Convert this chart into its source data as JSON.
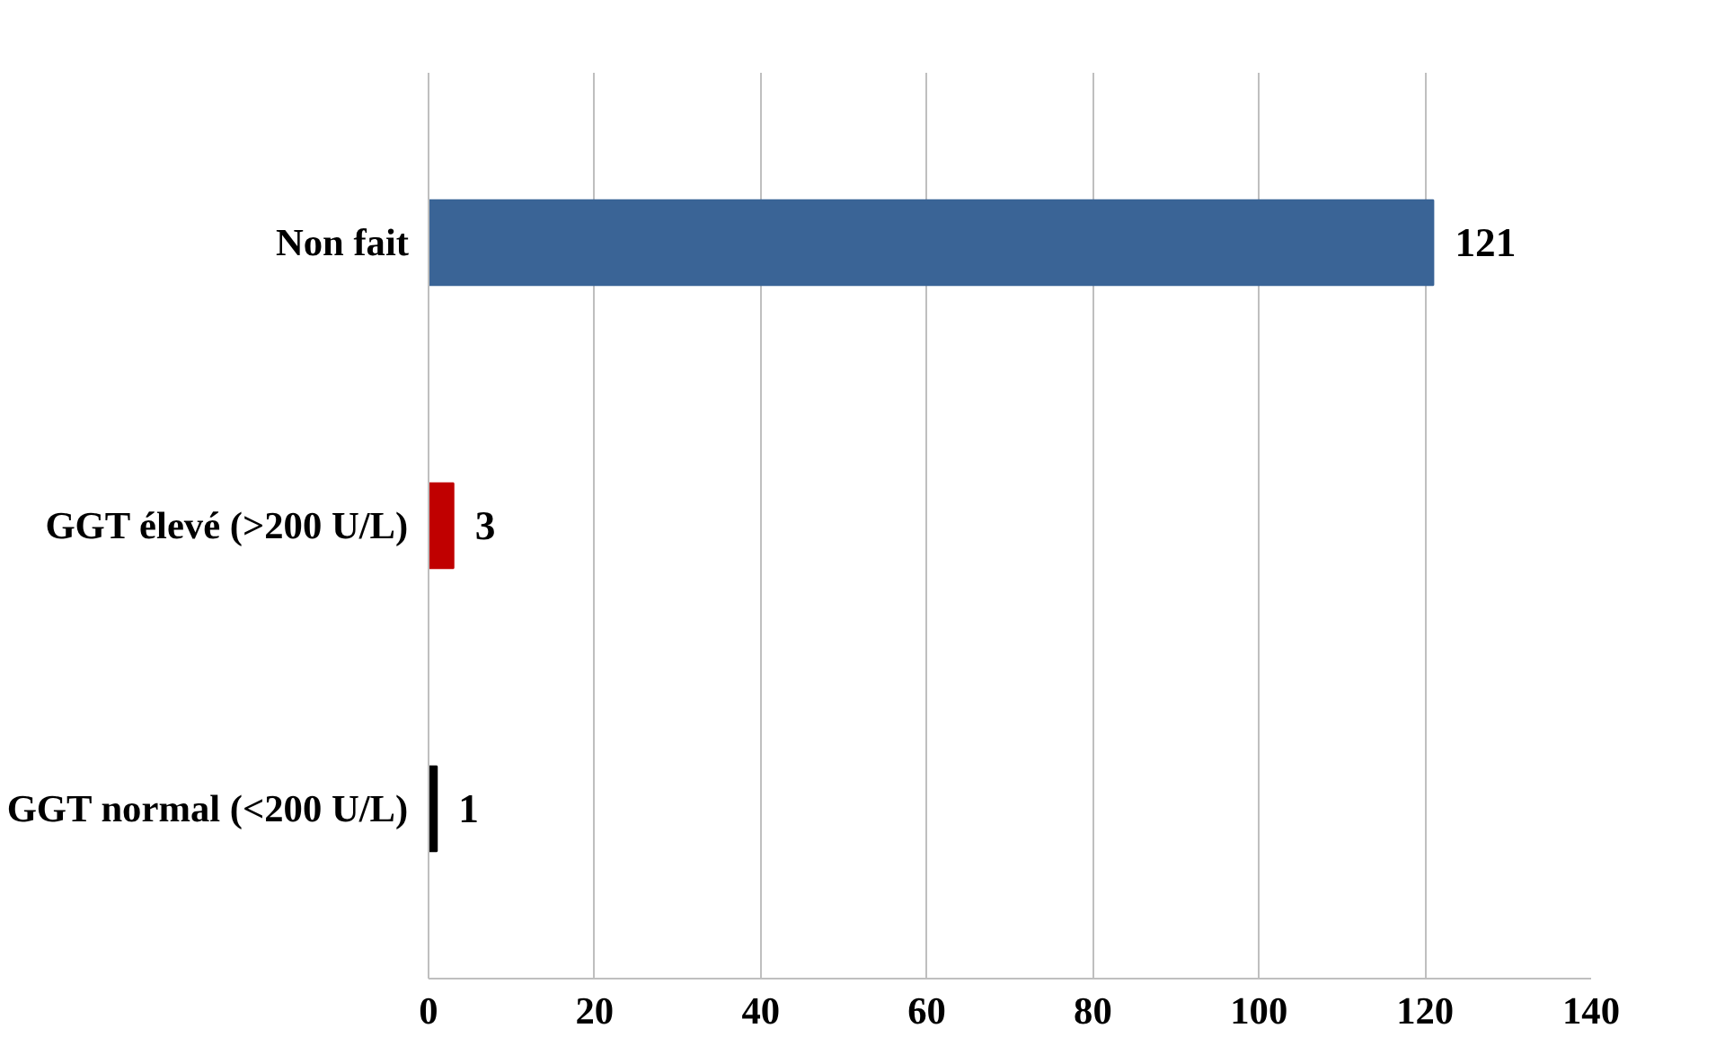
{
  "chart_data": {
    "type": "bar",
    "orientation": "horizontal",
    "categories": [
      "Non fait",
      "GGT élevé (>200 U/L)",
      "GGT normal (<200 U/L)"
    ],
    "values": [
      121,
      3,
      1
    ],
    "colors": [
      "#3a6496",
      "#c00000",
      "#000000"
    ],
    "xlim": [
      0,
      140
    ],
    "xticks": [
      0,
      20,
      40,
      60,
      80,
      100,
      120,
      140
    ],
    "grid": "x",
    "data_labels": true
  }
}
